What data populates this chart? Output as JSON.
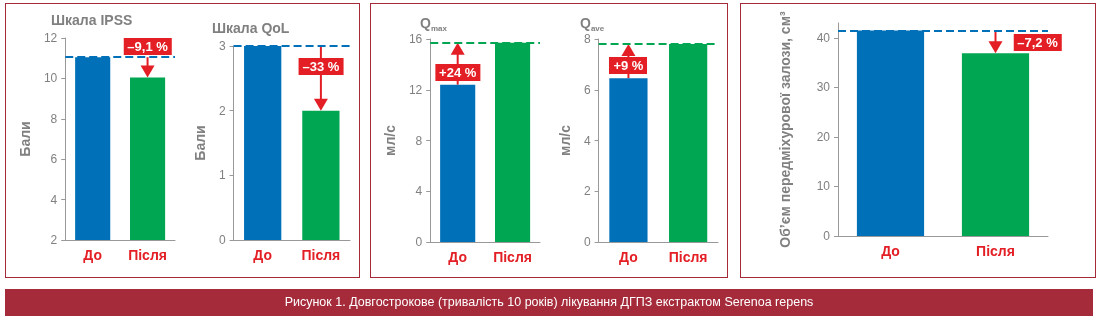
{
  "chart_data": [
    {
      "type": "bar",
      "title": "Шкала IPSS",
      "ylabel": "Бали",
      "categories": [
        "До",
        "Після"
      ],
      "values": [
        11.05,
        10.05
      ],
      "colors": [
        "#0070b8",
        "#00a651"
      ],
      "ylim": [
        2,
        12
      ],
      "yticks": [
        2,
        4,
        6,
        8,
        10,
        12
      ],
      "grid": false,
      "ref_lines": [
        {
          "axis": "y",
          "value": 11.05,
          "color": "#0070b8",
          "line_style": "dashed"
        }
      ],
      "annotations": [
        {
          "text": "–9,1 %",
          "x": "Після",
          "y": 10.05
        }
      ]
    },
    {
      "type": "bar",
      "title": "Шкала QoL",
      "ylabel": "Бали",
      "categories": [
        "До",
        "Після"
      ],
      "values": [
        3.0,
        2.0
      ],
      "colors": [
        "#0070b8",
        "#00a651"
      ],
      "ylim": [
        0,
        3
      ],
      "yticks": [
        0,
        1,
        2,
        3
      ],
      "grid": false,
      "ref_lines": [
        {
          "axis": "y",
          "value": 3.0,
          "color": "#0070b8",
          "line_style": "dashed"
        }
      ],
      "annotations": [
        {
          "text": "–33 %",
          "x": "Після",
          "y": 2.0
        }
      ]
    },
    {
      "type": "bar",
      "title": "Q$_{max}$",
      "ylabel": "мл/с",
      "categories": [
        "До",
        "Після"
      ],
      "values": [
        12.4,
        15.7
      ],
      "colors": [
        "#0070b8",
        "#00a651"
      ],
      "ylim": [
        0,
        16
      ],
      "yticks": [
        0,
        4,
        8,
        12,
        16
      ],
      "grid": false,
      "ref_lines": [
        {
          "axis": "y",
          "value": 15.7,
          "color": "#00a651",
          "line_style": "dashed"
        }
      ],
      "annotations": [
        {
          "text": "+24 %",
          "x": "До",
          "y": 12.4
        }
      ]
    },
    {
      "type": "bar",
      "title": "Q$_{ave}$",
      "ylabel": "мл/с",
      "categories": [
        "До",
        "Після"
      ],
      "values": [
        6.45,
        7.8
      ],
      "colors": [
        "#0070b8",
        "#00a651"
      ],
      "ylim": [
        0,
        8
      ],
      "yticks": [
        0,
        2,
        4,
        6,
        8
      ],
      "grid": false,
      "ref_lines": [
        {
          "axis": "y",
          "value": 7.8,
          "color": "#00a651",
          "line_style": "dashed"
        }
      ],
      "annotations": [
        {
          "text": "+9 %",
          "x": "До",
          "y": 6.45
        }
      ]
    },
    {
      "type": "bar",
      "ylabel": "Об’єм передміхурової залози, см³",
      "categories": [
        "До",
        "Після"
      ],
      "values": [
        41.5,
        36.9
      ],
      "colors": [
        "#0070b8",
        "#00a651"
      ],
      "ylim": [
        0,
        43
      ],
      "yticks": [
        0,
        10,
        20,
        30,
        40
      ],
      "grid": false,
      "ref_lines": [
        {
          "axis": "y",
          "value": 41.5,
          "color": "#0070b8",
          "line_style": "dashed"
        }
      ],
      "annotations": [
        {
          "text": "–7,2 %",
          "x": "Після",
          "y": 36.9
        },
        "Рисунок 1.  Довгострокове (тривалість 10 років) лікування ДГПЗ екстрактом Serenoa repens"
      ]
    }
  ]
}
